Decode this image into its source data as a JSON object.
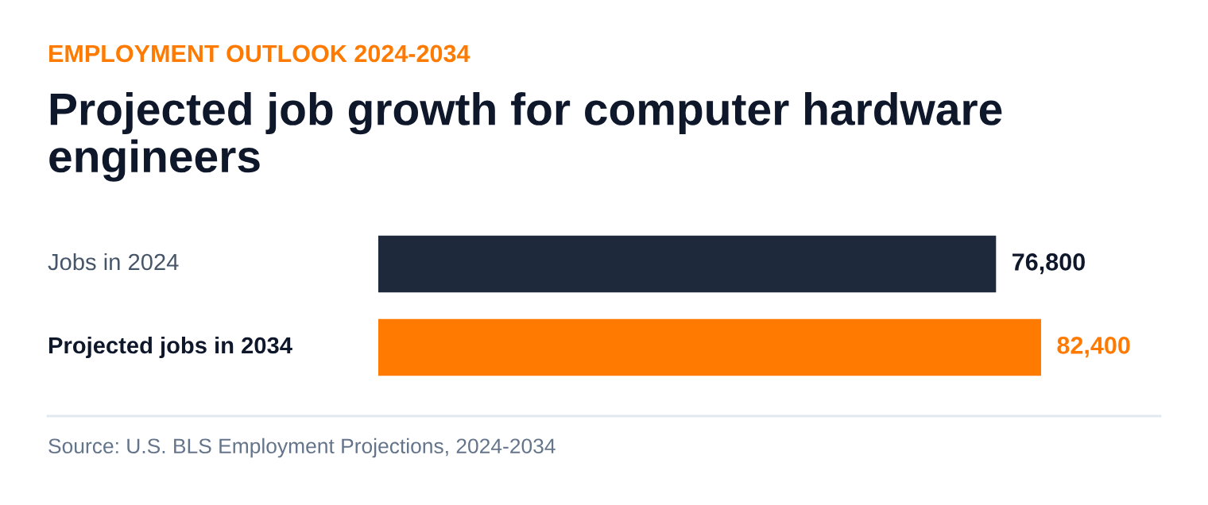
{
  "chart_data": {
    "type": "bar",
    "orientation": "horizontal",
    "subtitle": "EMPLOYMENT OUTLOOK 2024-2034",
    "title": "Projected job growth for computer hardware engineers",
    "categories": [
      "Jobs in 2024",
      "Projected jobs in 2034"
    ],
    "values": [
      76800,
      82400
    ],
    "colors": [
      "#1e293b",
      "#ff7a00"
    ],
    "value_labels": [
      "76,800",
      "82,400"
    ],
    "annotations": [
      "Source: U.S. BLS Employment Projections, 2024-2034"
    ]
  }
}
